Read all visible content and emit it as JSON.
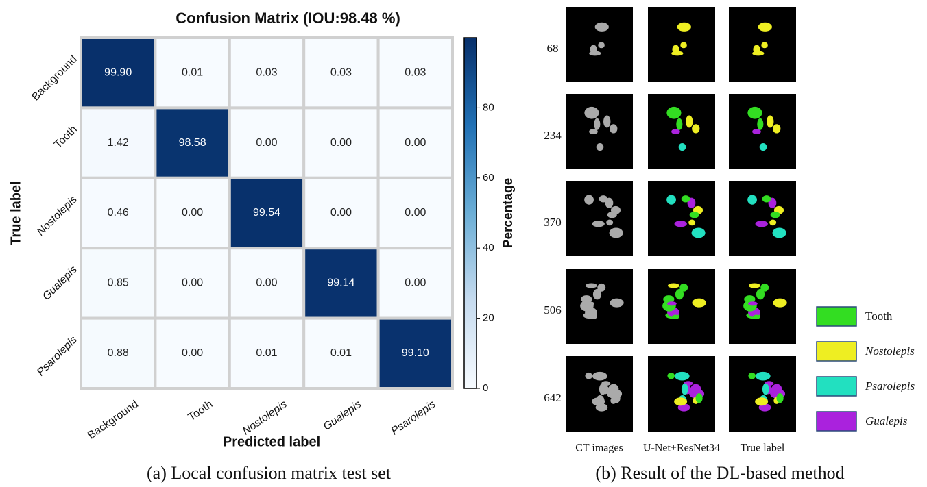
{
  "chart_data": {
    "type": "heatmap",
    "title": "Confusion Matrix (IOU:98.48 %)",
    "x_label": "Predicted label",
    "y_label": "True label",
    "colorbar_label": "Percentage",
    "x_categories": [
      "Background",
      "Tooth",
      "Nostolepis",
      "Gualepis",
      "Psarolepis"
    ],
    "y_categories": [
      "Background",
      "Tooth",
      "Nostolepis",
      "Gualepis",
      "Psarolepis"
    ],
    "values": [
      [
        99.9,
        0.01,
        0.03,
        0.03,
        0.03
      ],
      [
        1.42,
        98.58,
        0,
        0,
        0
      ],
      [
        0.46,
        0,
        99.54,
        0,
        0
      ],
      [
        0.85,
        0,
        0,
        99.14,
        0
      ],
      [
        0.88,
        0,
        0.01,
        0.01,
        99.1
      ]
    ],
    "value_labels": [
      [
        "99.90",
        "0.01",
        "0.03",
        "0.03",
        "0.03"
      ],
      [
        "1.42",
        "98.58",
        "0.00",
        "0.00",
        "0.00"
      ],
      [
        "0.46",
        "0.00",
        "99.54",
        "0.00",
        "0.00"
      ],
      [
        "0.85",
        "0.00",
        "0.00",
        "99.14",
        "0.00"
      ],
      [
        "0.88",
        "0.00",
        "0.01",
        "0.01",
        "99.10"
      ]
    ],
    "colormap": "Blues",
    "clim": [
      0,
      100
    ],
    "cticks": [
      0,
      20,
      40,
      60,
      80
    ]
  },
  "panel_a_caption": "(a) Local confusion matrix test set",
  "panel_b": {
    "caption": "(b) Result of the DL-based method",
    "row_labels": [
      "68",
      "234",
      "370",
      "506",
      "642"
    ],
    "column_labels": [
      "CT images",
      "U-Net+ResNet34",
      "True label"
    ],
    "legend": [
      {
        "name": "Tooth",
        "color": "#33dd22"
      },
      {
        "name": "Nostolepis",
        "color": "#eeee22"
      },
      {
        "name": "Psarolepis",
        "color": "#22e0c0"
      },
      {
        "name": "Gualepis",
        "color": "#aa22dd"
      }
    ]
  }
}
